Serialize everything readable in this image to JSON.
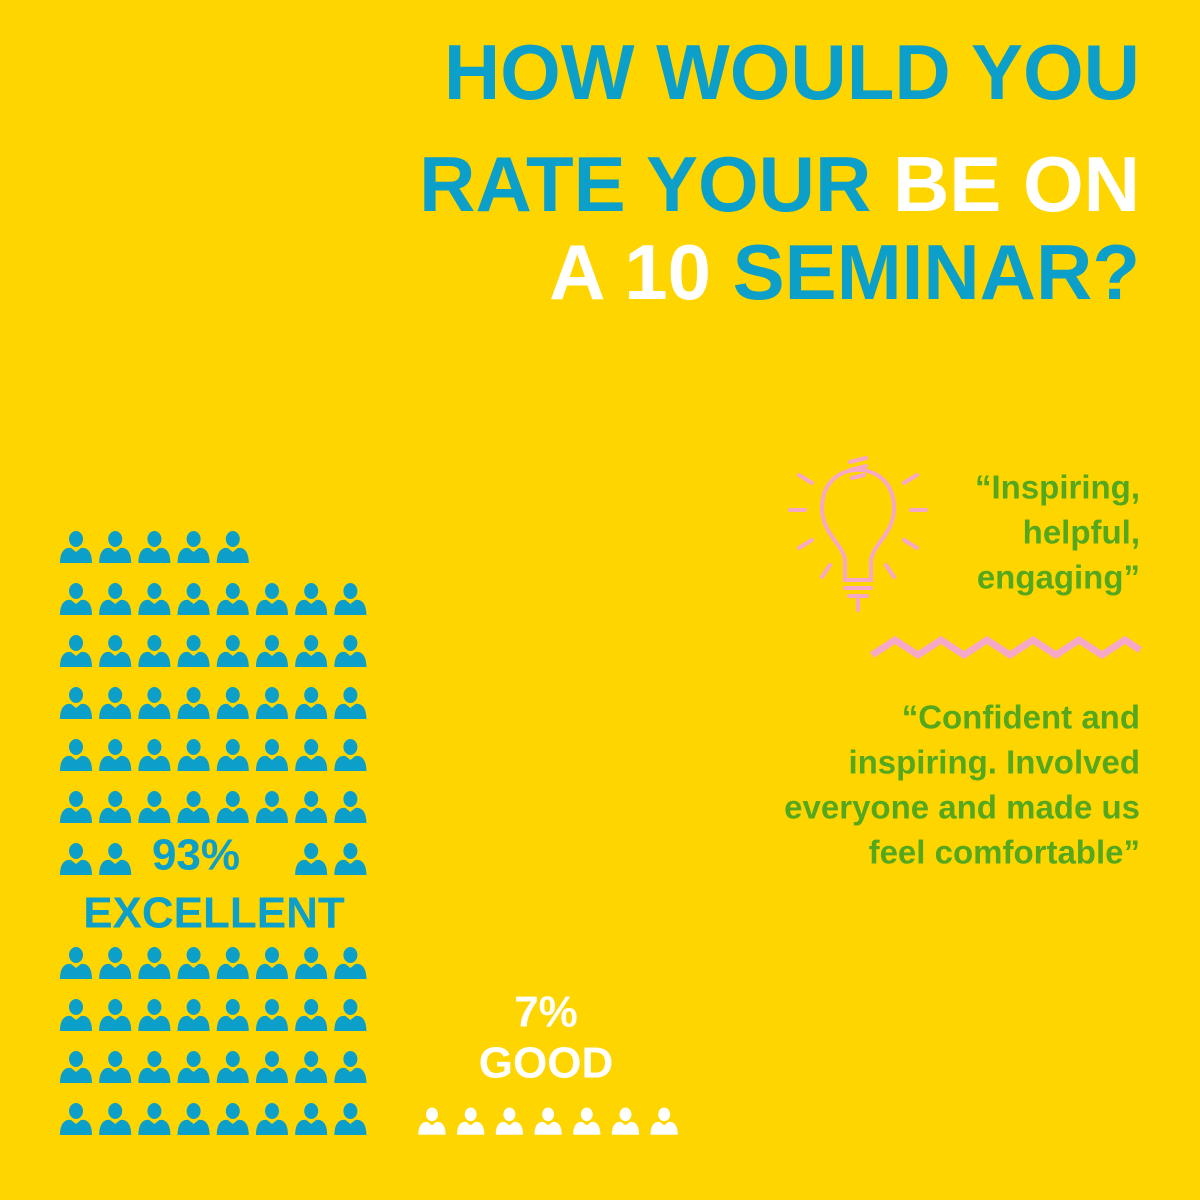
{
  "chart_data": {
    "type": "pictogram",
    "title": [
      {
        "text": "HOW WOULD YOU",
        "color": "#0b9fc9"
      },
      {
        "text": "RATE YOUR",
        "color": "#0b9fc9"
      },
      {
        "text": "BE ON",
        "color": "#ffffff"
      },
      {
        "text": "A 10",
        "color": "#ffffff"
      },
      {
        "text": "SEMINAR?",
        "color": "#0b9fc9"
      }
    ],
    "categories": [
      "EXCELLENT",
      "GOOD"
    ],
    "values": [
      93,
      7
    ],
    "value_labels": [
      "93%",
      "7%"
    ],
    "colors": [
      "#0b9fc9",
      "#ffffff"
    ]
  },
  "quotes": [
    [
      "“Inspiring,",
      "helpful,",
      "engaging”"
    ],
    [
      "“Confident and",
      "inspiring. Involved",
      "everyone and made us",
      "feel comfortable”"
    ]
  ],
  "quote_color": "#55a81e"
}
